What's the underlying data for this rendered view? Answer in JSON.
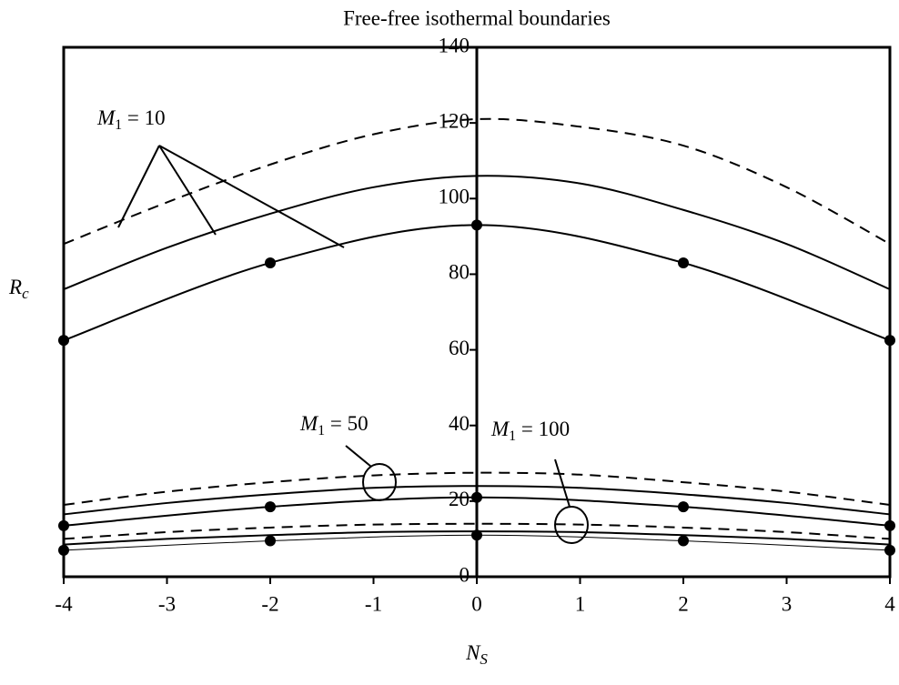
{
  "chart_data": {
    "type": "line",
    "title": "Free-free isothermal boundaries",
    "xlabel": {
      "main": "N",
      "sub": "S"
    },
    "ylabel": {
      "main": "R",
      "sub": "c"
    },
    "xlim": [
      -4,
      4
    ],
    "xticks": [
      -4,
      -3,
      -2,
      -1,
      0,
      1,
      2,
      3,
      4
    ],
    "ylim": [
      0,
      140
    ],
    "yticks": [
      0,
      20,
      40,
      60,
      80,
      100,
      120,
      140
    ],
    "series": [
      {
        "color": "#000000",
        "dash": true,
        "marker": false,
        "x": [
          -4,
          -3,
          -2,
          -1,
          0,
          1,
          2,
          3,
          4
        ],
        "values": [
          88,
          99,
          109,
          117,
          121,
          119,
          114,
          103,
          88
        ]
      },
      {
        "color": "#000000",
        "dash": false,
        "marker": false,
        "x": [
          -4,
          -3,
          -2,
          -1,
          0,
          1,
          2,
          3,
          4
        ],
        "values": [
          76,
          87,
          96,
          103,
          106,
          104,
          97,
          88,
          76
        ]
      },
      {
        "color": "#000000",
        "dash": false,
        "marker": true,
        "x": [
          -4,
          -2,
          0,
          2,
          4
        ],
        "values": [
          62.5,
          83,
          93,
          83,
          62.5
        ]
      },
      {
        "color": "#000000",
        "dash": true,
        "marker": false,
        "x": [
          -4,
          -3,
          -2,
          -1,
          0,
          1,
          2,
          3,
          4
        ],
        "values": [
          19,
          22.5,
          25,
          26.8,
          27.5,
          27,
          25,
          22.5,
          19
        ]
      },
      {
        "color": "#000000",
        "dash": false,
        "marker": false,
        "x": [
          -4,
          -3,
          -2,
          -1,
          0,
          1,
          2,
          3,
          4
        ],
        "values": [
          16.5,
          19.5,
          21.8,
          23.5,
          24,
          23.5,
          21.8,
          19.5,
          16.5
        ]
      },
      {
        "color": "#000000",
        "dash": false,
        "marker": true,
        "x": [
          -4,
          -2,
          0,
          2,
          4
        ],
        "values": [
          13.5,
          18.5,
          21,
          18.5,
          13.5
        ]
      },
      {
        "color": "#000000",
        "dash": true,
        "marker": false,
        "x": [
          -4,
          -3,
          -2,
          -1,
          0,
          1,
          2,
          3,
          4
        ],
        "values": [
          10,
          11.8,
          13,
          13.8,
          14,
          13.8,
          13,
          11.8,
          10
        ]
      },
      {
        "color": "#000000",
        "dash": false,
        "marker": false,
        "x": [
          -4,
          -3,
          -2,
          -1,
          0,
          1,
          2,
          3,
          4
        ],
        "values": [
          8.5,
          10,
          11,
          11.8,
          12,
          11.8,
          11,
          10,
          8.5
        ]
      },
      {
        "color": "#000000",
        "dash": false,
        "marker": true,
        "thin": true,
        "x": [
          -4,
          -2,
          0,
          2,
          4
        ],
        "values": [
          7,
          9.5,
          11,
          9.5,
          7
        ]
      }
    ],
    "annotations": [
      {
        "main": "M",
        "sub": "1",
        "rest": " = 10"
      },
      {
        "main": "M",
        "sub": "1",
        "rest": " = 50"
      },
      {
        "main": "M",
        "sub": "1",
        "rest": " = 100"
      }
    ]
  }
}
